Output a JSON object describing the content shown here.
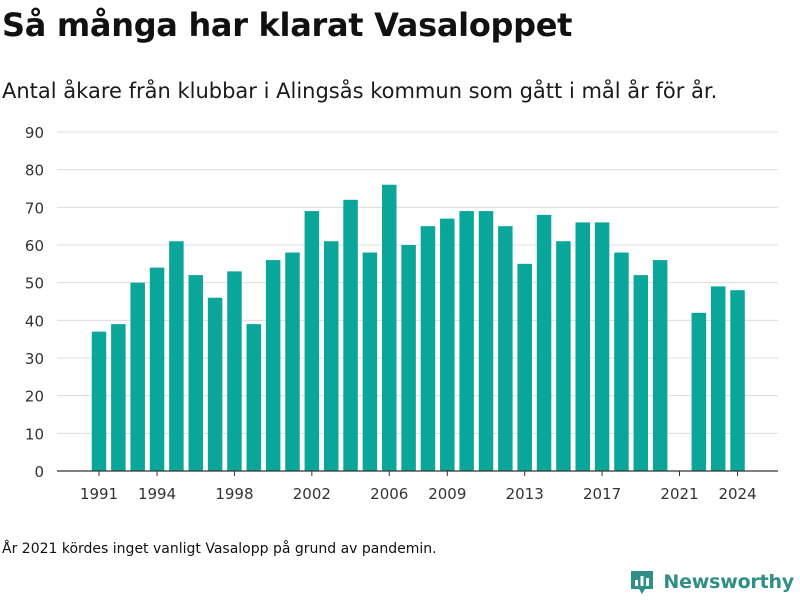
{
  "title": "Så många har klarat Vasaloppet",
  "subtitle": "Antal åkare från klubbar i Alingsås kommun som gått i mål år för år.",
  "footnote": "År 2021 kördes inget vanligt Vasalopp på grund av pandemin.",
  "brand": {
    "name": "Newsworthy",
    "color": "#2f8f86",
    "logo_icon": "bar-chart-pin-icon"
  },
  "colors": {
    "bar": "#0aa699",
    "grid": "#dcdcdc",
    "axis": "#333333",
    "tick_text": "#333333"
  },
  "chart_data": {
    "type": "bar",
    "categories": [
      1991,
      1992,
      1993,
      1994,
      1995,
      1996,
      1997,
      1998,
      1999,
      2000,
      2001,
      2002,
      2003,
      2004,
      2005,
      2006,
      2007,
      2008,
      2009,
      2010,
      2011,
      2012,
      2013,
      2014,
      2015,
      2016,
      2017,
      2018,
      2019,
      2020,
      2021,
      2022,
      2023,
      2024
    ],
    "values": [
      37,
      39,
      50,
      54,
      61,
      52,
      46,
      53,
      39,
      56,
      58,
      69,
      61,
      72,
      58,
      76,
      60,
      65,
      67,
      69,
      69,
      65,
      55,
      68,
      61,
      66,
      66,
      58,
      52,
      56,
      null,
      42,
      49,
      48
    ],
    "x_tick_labels": [
      "1991",
      "1994",
      "1998",
      "2002",
      "2006",
      "2009",
      "2013",
      "2017",
      "2021",
      "2024"
    ],
    "y_ticks": [
      0,
      10,
      20,
      30,
      40,
      50,
      60,
      70,
      80,
      90
    ],
    "ylim": [
      0,
      90
    ],
    "grid": true,
    "legend": "none",
    "xlabel": "",
    "ylabel": ""
  }
}
